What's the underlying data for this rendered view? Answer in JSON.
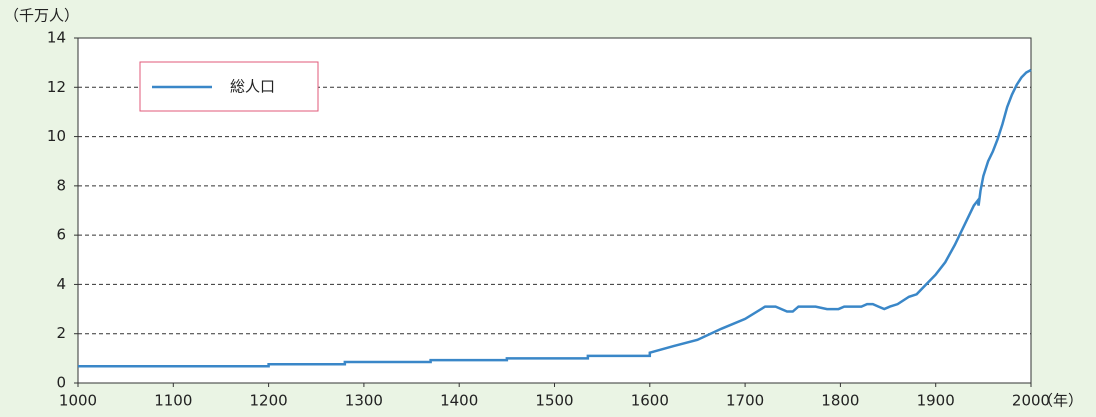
{
  "chart_data": {
    "type": "line",
    "y_label": "（千万人）",
    "x_label": "（年）",
    "x": [
      1000,
      1200,
      1200,
      1280,
      1280,
      1370,
      1370,
      1450,
      1450,
      1535,
      1535,
      1600,
      1600,
      1625,
      1650,
      1675,
      1700,
      1721,
      1732,
      1744,
      1750,
      1756,
      1762,
      1774,
      1786,
      1792,
      1798,
      1804,
      1822,
      1828,
      1834,
      1840,
      1846,
      1852,
      1860,
      1872,
      1880,
      1890,
      1900,
      1910,
      1920,
      1930,
      1940,
      1944,
      1945,
      1947,
      1950,
      1955,
      1960,
      1965,
      1970,
      1975,
      1980,
      1985,
      1990,
      1995,
      2000
    ],
    "series": [
      {
        "name": "総人口",
        "color": "#3a87c8",
        "values": [
          0.68,
          0.68,
          0.76,
          0.76,
          0.85,
          0.85,
          0.93,
          0.93,
          1.0,
          1.0,
          1.1,
          1.1,
          1.23,
          1.5,
          1.75,
          2.2,
          2.6,
          3.1,
          3.1,
          2.9,
          2.9,
          3.1,
          3.1,
          3.1,
          3.0,
          3.0,
          3.0,
          3.1,
          3.1,
          3.2,
          3.2,
          3.1,
          3.0,
          3.1,
          3.2,
          3.5,
          3.6,
          4.0,
          4.4,
          4.9,
          5.6,
          6.4,
          7.2,
          7.4,
          7.2,
          7.8,
          8.4,
          9.0,
          9.4,
          9.9,
          10.5,
          11.2,
          11.7,
          12.1,
          12.4,
          12.6,
          12.7
        ]
      }
    ],
    "xlim": [
      1000,
      2000
    ],
    "xticks": [
      1000,
      1100,
      1200,
      1300,
      1400,
      1500,
      1600,
      1700,
      1800,
      1900,
      2000
    ],
    "ylim": [
      0,
      14
    ],
    "yticks": [
      0,
      2,
      4,
      6,
      8,
      10,
      12,
      14
    ],
    "grid": true,
    "legend": "top-left"
  }
}
